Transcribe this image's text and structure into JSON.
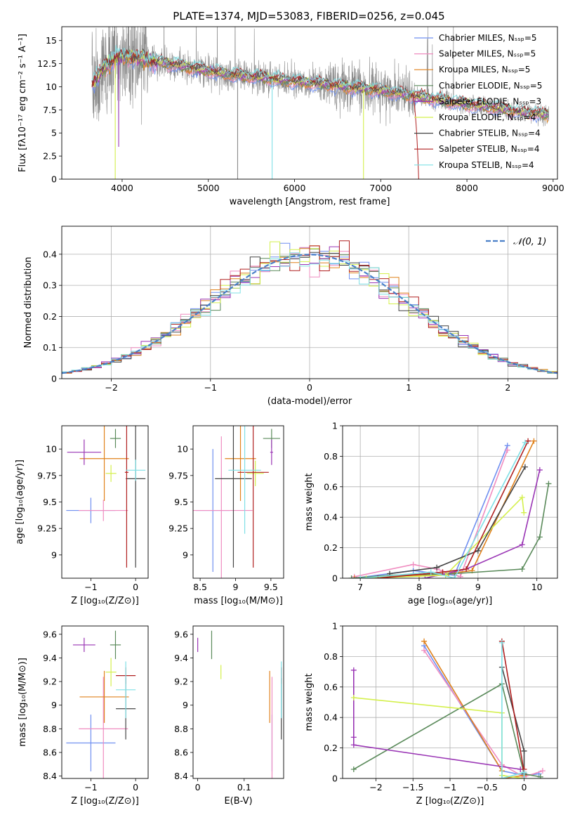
{
  "figure": {
    "title": "PLATE=1374, MJD=53083, FIBERID=0256, z=0.045"
  },
  "colors": {
    "chabrier_miles": "#6f8ff0",
    "salpeter_miles": "#f08cc0",
    "kroupa_miles": "#e0821c",
    "chabrier_elodie": "#5a8a5a",
    "salpeter_elodie": "#9a35b5",
    "kroupa_elodie": "#d4f04c",
    "chabrier_stelib": "#444444",
    "salpeter_stelib": "#b02020",
    "kroupa_stelib": "#7fe0e6",
    "data": "#8a8a8a",
    "gaussian": "#4a80c8"
  },
  "chart_data": [
    {
      "id": "spectrum",
      "type": "line",
      "xlabel": "wavelength [Angstrom, rest frame]",
      "ylabel": "Flux [fλ10⁻¹⁷ erg cm⁻² s⁻¹ A⁻¹]",
      "xlim": [
        3300,
        9050
      ],
      "ylim": [
        0,
        16.5
      ],
      "xticks": [
        4000,
        5000,
        6000,
        7000,
        8000,
        9000
      ],
      "yticks": [
        0.0,
        2.5,
        5.0,
        7.5,
        10.0,
        12.5,
        15.0
      ],
      "legend_position": "top-right",
      "legend": [
        "Chabrier MILES, Nₛₛₚ=5",
        "Salpeter MILES, Nₛₛₚ=5",
        "Kroupa MILES, Nₛₛₚ=5",
        "Chabrier ELODIE, Nₛₛₚ=5",
        "Salpeter ELODIE, Nₛₛₚ=3",
        "Kroupa ELODIE, Nₛₛₚ=4",
        "Chabrier STELIB, Nₛₛₚ=4",
        "Salpeter STELIB, Nₛₛₚ=4",
        "Kroupa STELIB, Nₛₛₚ=4"
      ],
      "continuum": {
        "x": [
          3650,
          3700,
          3800,
          3900,
          4000,
          4100,
          4200,
          4400,
          4600,
          4800,
          5000,
          5200,
          5400,
          5600,
          5800,
          6000,
          6200,
          6400,
          6600,
          6800,
          7000,
          7200,
          7400,
          7600,
          7800,
          8000,
          8200,
          8400,
          8600,
          8800,
          8950
        ],
        "y": [
          10.3,
          10.8,
          12.1,
          12.9,
          13.3,
          13.2,
          13.0,
          12.7,
          12.4,
          12.1,
          11.7,
          11.4,
          11.2,
          11.0,
          10.8,
          10.6,
          10.4,
          10.2,
          10.0,
          9.8,
          9.6,
          9.3,
          9.0,
          8.7,
          8.4,
          8.1,
          7.9,
          7.6,
          7.3,
          7.1,
          6.9
        ]
      },
      "drop_lines": [
        {
          "x": 3920,
          "y_low": 0.0,
          "color": "kroupa_elodie"
        },
        {
          "x": 3960,
          "y_low": 3.5,
          "color": "salpeter_elodie"
        },
        {
          "x": 5340,
          "y_low": 0.0,
          "color": "data"
        },
        {
          "x": 5740,
          "y_low": 0.0,
          "color": "kroupa_stelib"
        },
        {
          "x": 6800,
          "y_low": 0.0,
          "color": "kroupa_elodie"
        }
      ]
    },
    {
      "id": "residuals",
      "type": "bar",
      "xlabel": "(data-model)/error",
      "ylabel": "Normed distribution",
      "xlim": [
        -2.5,
        2.5
      ],
      "ylim": [
        0,
        0.49
      ],
      "xticks": [
        -2,
        -1,
        0,
        1,
        2
      ],
      "yticks": [
        0.0,
        0.1,
        0.2,
        0.3,
        0.4
      ],
      "grid": true,
      "bin_width": 0.1,
      "legend_position": "top-right",
      "legend": [
        "𝒩(0, 1)"
      ]
    },
    {
      "id": "age_vs_z",
      "type": "scatter",
      "xlabel": "Z [log₁₀(Z/Z⊙)]",
      "ylabel": "age  [log₁₀(age/yr)]",
      "xlim": [
        -1.65,
        0.28
      ],
      "ylim": [
        8.78,
        10.22
      ],
      "xticks": [
        -1,
        0
      ],
      "yticks": [
        9.0,
        9.25,
        9.5,
        9.75,
        10.0
      ],
      "points": [
        {
          "x": -1.0,
          "y": 9.42,
          "xerr": 0.55,
          "yerr": 0.12,
          "color": "chabrier_miles"
        },
        {
          "x": -0.72,
          "y": 9.42,
          "xerr": 0.55,
          "yerr": 0.1,
          "color": "salpeter_miles"
        },
        {
          "x": -0.7,
          "y": 9.91,
          "xerr": 0.55,
          "yerr": 0.4,
          "color": "kroupa_miles"
        },
        {
          "x": -0.45,
          "y": 10.1,
          "xerr": 0.12,
          "yerr": 0.09,
          "color": "chabrier_elodie"
        },
        {
          "x": -1.15,
          "y": 9.97,
          "xerr": 0.38,
          "yerr": 0.12,
          "color": "salpeter_elodie"
        },
        {
          "x": -0.55,
          "y": 9.77,
          "xerr": 0.12,
          "yerr": 0.08,
          "color": "kroupa_elodie"
        },
        {
          "x": 0.0,
          "y": 9.72,
          "xerr": 0.22,
          "yerr": 0.84,
          "color": "chabrier_stelib"
        },
        {
          "x": -0.2,
          "y": 9.78,
          "xerr": 0.04,
          "yerr": 0.9,
          "color": "salpeter_stelib"
        },
        {
          "x": 0.0,
          "y": 9.8,
          "xerr": 0.22,
          "yerr": 0.1,
          "color": "kroupa_stelib"
        }
      ]
    },
    {
      "id": "age_vs_mass",
      "type": "scatter",
      "xlabel": "mass [log₁₀(M/M⊙)]",
      "ylabel": "",
      "xlim": [
        8.4,
        9.68
      ],
      "ylim": [
        8.78,
        10.22
      ],
      "xticks": [
        8.5,
        9.0,
        9.5
      ],
      "yticks": [
        9.0,
        9.25,
        9.5,
        9.75,
        10.0
      ],
      "points": [
        {
          "x": 8.68,
          "y": 9.42,
          "xerr": 0.24,
          "yerr": 0.58,
          "color": "chabrier_miles"
        },
        {
          "x": 8.8,
          "y": 9.42,
          "xerr": 0.44,
          "yerr": 0.7,
          "color": "salpeter_miles"
        },
        {
          "x": 9.07,
          "y": 9.91,
          "xerr": 0.22,
          "yerr": 0.4,
          "color": "kroupa_miles"
        },
        {
          "x": 9.51,
          "y": 10.1,
          "xerr": 0.12,
          "yerr": 0.09,
          "color": "chabrier_elodie"
        },
        {
          "x": 9.51,
          "y": 9.97,
          "xerr": 0.02,
          "yerr": 0.12,
          "color": "salpeter_elodie"
        },
        {
          "x": 9.28,
          "y": 9.77,
          "xerr": 0.12,
          "yerr": 0.12,
          "color": "kroupa_elodie"
        },
        {
          "x": 8.97,
          "y": 9.72,
          "xerr": 0.26,
          "yerr": 0.84,
          "color": "chabrier_stelib"
        },
        {
          "x": 9.25,
          "y": 9.78,
          "xerr": 0.22,
          "yerr": 0.9,
          "color": "salpeter_stelib"
        },
        {
          "x": 9.13,
          "y": 9.8,
          "xerr": 0.23,
          "yerr": 0.6,
          "color": "kroupa_stelib"
        }
      ]
    },
    {
      "id": "weight_vs_age",
      "type": "line",
      "xlabel": "age  [log₁₀(age/yr)]",
      "ylabel": "mass weight",
      "xlim": [
        6.7,
        10.35
      ],
      "ylim": [
        0,
        1.0
      ],
      "xticks": [
        7,
        8,
        9,
        10
      ],
      "yticks": [
        0.0,
        0.2,
        0.4,
        0.6,
        0.8,
        1.0
      ],
      "grid": true,
      "series": [
        {
          "color": "chabrier_miles",
          "x": [
            6.9,
            7.9,
            8.3,
            8.6,
            9.5
          ],
          "y": [
            0.0,
            0.05,
            0.03,
            0.02,
            0.87
          ]
        },
        {
          "color": "salpeter_miles",
          "x": [
            6.9,
            7.9,
            8.3,
            8.7,
            9.5
          ],
          "y": [
            0.01,
            0.09,
            0.06,
            0.01,
            0.84
          ]
        },
        {
          "color": "kroupa_miles",
          "x": [
            6.9,
            8.0,
            8.5,
            8.9,
            9.95
          ],
          "y": [
            0.0,
            0.02,
            0.03,
            0.05,
            0.9
          ]
        },
        {
          "color": "chabrier_elodie",
          "x": [
            6.85,
            7.5,
            8.6,
            9.75,
            10.05,
            10.2
          ],
          "y": [
            0.0,
            0.02,
            0.03,
            0.06,
            0.27,
            0.62
          ]
        },
        {
          "color": "salpeter_elodie",
          "x": [
            8.1,
            8.8,
            9.75,
            10.05
          ],
          "y": [
            0.0,
            0.06,
            0.22,
            0.71
          ]
        },
        {
          "color": "kroupa_elodie",
          "x": [
            7.1,
            8.45,
            9.75,
            9.78
          ],
          "y": [
            0.0,
            0.02,
            0.53,
            0.43
          ]
        },
        {
          "color": "chabrier_stelib",
          "x": [
            7.5,
            8.3,
            9.0,
            9.8
          ],
          "y": [
            0.03,
            0.07,
            0.18,
            0.73
          ]
        },
        {
          "color": "salpeter_stelib",
          "x": [
            7.3,
            8.4,
            8.8,
            9.85
          ],
          "y": [
            0.0,
            0.04,
            0.06,
            0.9
          ]
        },
        {
          "color": "kroupa_stelib",
          "x": [
            7.0,
            8.2,
            8.6,
            9.8
          ],
          "y": [
            0.0,
            0.04,
            0.0,
            0.89
          ]
        }
      ]
    },
    {
      "id": "mass_vs_z",
      "type": "scatter",
      "xlabel": "Z [log₁₀(Z/Z⊙)]",
      "ylabel": "mass [log₁₀(M/M⊙)]",
      "xlim": [
        -1.65,
        0.28
      ],
      "ylim": [
        8.38,
        9.67
      ],
      "xticks": [
        -1,
        0
      ],
      "yticks": [
        8.4,
        8.6,
        8.8,
        9.0,
        9.2,
        9.4,
        9.6
      ],
      "points": [
        {
          "x": -1.0,
          "y": 8.68,
          "xerr": 0.55,
          "yerr": 0.24,
          "color": "chabrier_miles"
        },
        {
          "x": -0.72,
          "y": 8.8,
          "xerr": 0.55,
          "yerr": 0.44,
          "color": "salpeter_miles"
        },
        {
          "x": -0.7,
          "y": 9.07,
          "xerr": 0.55,
          "yerr": 0.22,
          "color": "kroupa_miles"
        },
        {
          "x": -0.45,
          "y": 9.51,
          "xerr": 0.12,
          "yerr": 0.12,
          "color": "chabrier_elodie"
        },
        {
          "x": -1.15,
          "y": 9.51,
          "xerr": 0.25,
          "yerr": 0.06,
          "color": "salpeter_elodie"
        },
        {
          "x": -0.55,
          "y": 9.28,
          "xerr": 0.12,
          "yerr": 0.12,
          "color": "kroupa_elodie"
        },
        {
          "x": -0.22,
          "y": 8.97,
          "xerr": 0.22,
          "yerr": 0.26,
          "color": "chabrier_stelib"
        },
        {
          "x": -0.22,
          "y": 9.25,
          "xerr": 0.22,
          "yerr": 0.07,
          "color": "salpeter_stelib"
        },
        {
          "x": -0.22,
          "y": 9.13,
          "xerr": 0.22,
          "yerr": 0.24,
          "color": "kroupa_stelib"
        }
      ]
    },
    {
      "id": "mass_vs_ebv",
      "type": "scatter",
      "xlabel": "E(B-V)",
      "ylabel": "",
      "xlim": [
        -0.01,
        0.185
      ],
      "ylim": [
        8.38,
        9.67
      ],
      "xticks": [
        0.0,
        0.1
      ],
      "yticks": [
        8.4,
        8.6,
        8.8,
        9.0,
        9.2,
        9.4,
        9.6
      ],
      "points": [
        {
          "x": 0.16,
          "y": 8.68,
          "yerr": 0.24,
          "color": "chabrier_miles"
        },
        {
          "x": 0.16,
          "y": 8.8,
          "yerr": 0.44,
          "color": "salpeter_miles"
        },
        {
          "x": 0.155,
          "y": 9.07,
          "yerr": 0.22,
          "color": "kroupa_miles"
        },
        {
          "x": 0.03,
          "y": 9.51,
          "yerr": 0.12,
          "color": "chabrier_elodie"
        },
        {
          "x": 0.0,
          "y": 9.51,
          "yerr": 0.06,
          "color": "salpeter_elodie"
        },
        {
          "x": 0.05,
          "y": 9.28,
          "yerr": 0.06,
          "color": "kroupa_elodie"
        },
        {
          "x": 0.18,
          "y": 8.97,
          "yerr": 0.26,
          "color": "chabrier_stelib"
        },
        {
          "x": 0.18,
          "y": 9.25,
          "yerr": 0.07,
          "color": "salpeter_stelib"
        },
        {
          "x": 0.18,
          "y": 9.13,
          "yerr": 0.24,
          "color": "kroupa_stelib"
        }
      ]
    },
    {
      "id": "weight_vs_z",
      "type": "line",
      "xlabel": "Z [log₁₀(Z/Z⊙)]",
      "ylabel": "mass weight",
      "xlim": [
        -2.45,
        0.45
      ],
      "ylim": [
        0,
        1.0
      ],
      "xticks": [
        -2.0,
        -1.5,
        -1.0,
        -0.5,
        0.0
      ],
      "yticks": [
        0.0,
        0.2,
        0.4,
        0.6,
        0.8,
        1.0
      ],
      "grid": true,
      "series": [
        {
          "color": "chabrier_miles",
          "x": [
            -1.35,
            -0.3,
            0.0,
            0.2
          ],
          "y": [
            0.87,
            0.05,
            0.02,
            0.03
          ]
        },
        {
          "color": "salpeter_miles",
          "x": [
            -1.35,
            -0.3,
            0.0,
            0.25
          ],
          "y": [
            0.84,
            0.09,
            0.01,
            0.05
          ]
        },
        {
          "color": "kroupa_miles",
          "x": [
            -1.35,
            -0.3,
            -0.3,
            0.0
          ],
          "y": [
            0.9,
            0.05,
            0.0,
            0.02
          ]
        },
        {
          "color": "chabrier_elodie",
          "x": [
            -2.3,
            -0.3,
            0.0,
            0.22
          ],
          "y": [
            0.06,
            0.62,
            0.03,
            0.01
          ]
        },
        {
          "color": "salpeter_elodie",
          "x": [
            -2.3,
            -2.3,
            -2.3,
            -0.05
          ],
          "y": [
            0.71,
            0.27,
            0.22,
            0.06
          ]
        },
        {
          "color": "kroupa_elodie",
          "x": [
            -2.3,
            -0.3,
            -0.3,
            0.0
          ],
          "y": [
            0.53,
            0.43,
            0.02,
            0.0
          ]
        },
        {
          "color": "chabrier_stelib",
          "x": [
            -0.3,
            0.0,
            0.0
          ],
          "y": [
            0.73,
            0.18,
            0.03
          ]
        },
        {
          "color": "salpeter_stelib",
          "x": [
            -0.3,
            0.0,
            0.0
          ],
          "y": [
            0.9,
            0.04,
            0.06
          ]
        },
        {
          "color": "kroupa_stelib",
          "x": [
            -0.3,
            -0.3,
            0.0,
            0.0
          ],
          "y": [
            0.89,
            0.0,
            0.04,
            0.0
          ]
        }
      ]
    }
  ]
}
